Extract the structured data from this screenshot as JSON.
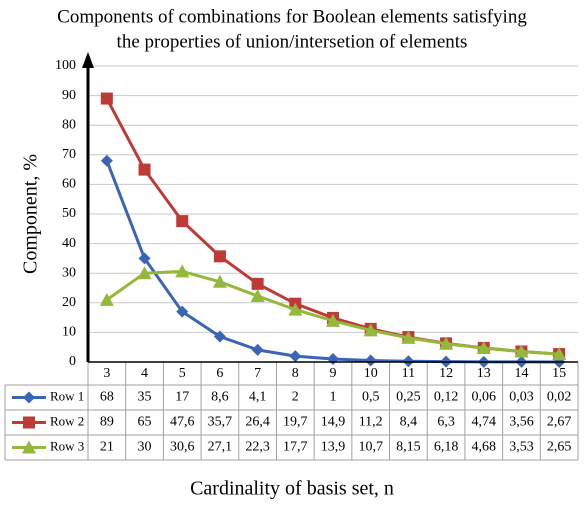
{
  "chart_data": {
    "type": "line",
    "title": [
      "Components of combinations for Boolean elements satisfying",
      "the properties of union/intersetion of elements"
    ],
    "ylabel": "Component, %",
    "xlabel": "Cardinality of basis set, n",
    "categories": [
      3,
      4,
      5,
      6,
      7,
      8,
      9,
      10,
      11,
      12,
      13,
      14,
      15
    ],
    "series": [
      {
        "name": "Row 1",
        "color": "#3c64b4",
        "marker": "diamond",
        "values": [
          68,
          35,
          17,
          8.6,
          4.1,
          2,
          1,
          0.5,
          0.25,
          0.12,
          0.06,
          0.03,
          0.02
        ],
        "value_labels": [
          "68",
          "35",
          "17",
          "8,6",
          "4,1",
          "2",
          "1",
          "0,5",
          "0,25",
          "0,12",
          "0,06",
          "0,03",
          "0,02"
        ]
      },
      {
        "name": "Row 2",
        "color": "#be3a36",
        "marker": "square",
        "values": [
          89,
          65,
          47.6,
          35.7,
          26.4,
          19.7,
          14.9,
          11.2,
          8.4,
          6.3,
          4.74,
          3.56,
          2.67
        ],
        "value_labels": [
          "89",
          "65",
          "47,6",
          "35,7",
          "26,4",
          "19,7",
          "14,9",
          "11,2",
          "8,4",
          "6,3",
          "4,74",
          "3,56",
          "2,67"
        ]
      },
      {
        "name": "Row 3",
        "color": "#94b83c",
        "marker": "triangle",
        "values": [
          21,
          30,
          30.6,
          27.1,
          22.3,
          17.7,
          13.9,
          10.7,
          8.15,
          6.18,
          4.68,
          3.53,
          2.65
        ],
        "value_labels": [
          "21",
          "30",
          "30,6",
          "27,1",
          "22,3",
          "17,7",
          "13,9",
          "10,7",
          "8,15",
          "6,18",
          "4,68",
          "3,53",
          "2,65"
        ]
      }
    ],
    "ylim": [
      0,
      100
    ],
    "yticks": [
      0,
      10,
      20,
      30,
      40,
      50,
      60,
      70,
      80,
      90,
      100
    ],
    "grid": true
  }
}
